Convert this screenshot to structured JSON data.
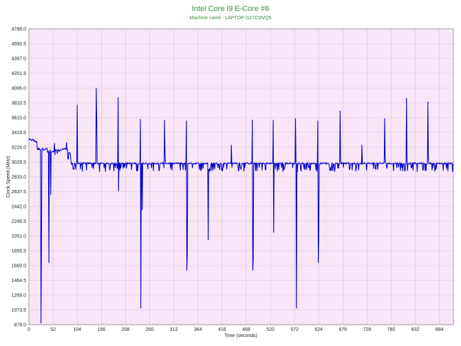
{
  "chart_data": {
    "type": "line",
    "title": "Intel Core i9 E-Core #6",
    "subtitle": "Machine name : LAPTOP-G27CDVQ5",
    "xlabel": "Time (seconds)",
    "ylabel": "Clock Speed (MHz)",
    "xlim": [
      0,
      914
    ],
    "ylim": [
      878.0,
      4788.0
    ],
    "x_ticks": [
      "0",
      "52",
      "104",
      "156",
      "208",
      "260",
      "312",
      "364",
      "416",
      "468",
      "520",
      "572",
      "624",
      "676",
      "728",
      "780",
      "832",
      "884"
    ],
    "y_ticks": [
      "878.0",
      "1073.5",
      "1269.0",
      "1464.5",
      "1660.0",
      "1855.5",
      "2051.0",
      "2246.5",
      "2442.0",
      "2637.5",
      "2833.0",
      "3028.5",
      "3224.0",
      "3419.5",
      "3615.0",
      "3810.5",
      "4006.0",
      "4201.5",
      "4397.0",
      "4592.5",
      "4788.0"
    ],
    "grid": true,
    "legend": "none",
    "series": [
      {
        "base_segments": [
          [
            0,
            3320
          ],
          [
            12,
            3300
          ],
          [
            18,
            3200
          ],
          [
            40,
            3160
          ],
          [
            55,
            3180
          ],
          [
            70,
            3200
          ],
          [
            84,
            3150
          ],
          [
            90,
            3000
          ],
          [
            95,
            2930
          ],
          [
            98,
            3010
          ],
          [
            914,
            3010
          ]
        ],
        "spikes": [
          {
            "x": 26,
            "y": 900
          },
          {
            "x": 27,
            "y": 1900
          },
          {
            "x": 43,
            "y": 1700
          },
          {
            "x": 47,
            "y": 2600
          },
          {
            "x": 104,
            "y": 3780
          },
          {
            "x": 145,
            "y": 4000
          },
          {
            "x": 146,
            "y": 3600
          },
          {
            "x": 192,
            "y": 3880
          },
          {
            "x": 193,
            "y": 2650
          },
          {
            "x": 240,
            "y": 3590
          },
          {
            "x": 241,
            "y": 1100
          },
          {
            "x": 244,
            "y": 2400
          },
          {
            "x": 292,
            "y": 3580
          },
          {
            "x": 293,
            "y": 3150
          },
          {
            "x": 339,
            "y": 3570
          },
          {
            "x": 340,
            "y": 1600
          },
          {
            "x": 341,
            "y": 1800
          },
          {
            "x": 386,
            "y": 2000
          },
          {
            "x": 436,
            "y": 3250
          },
          {
            "x": 481,
            "y": 3580
          },
          {
            "x": 482,
            "y": 1600
          },
          {
            "x": 483,
            "y": 1750
          },
          {
            "x": 526,
            "y": 3580
          },
          {
            "x": 527,
            "y": 2100
          },
          {
            "x": 574,
            "y": 3600
          },
          {
            "x": 576,
            "y": 1100
          },
          {
            "x": 578,
            "y": 2900
          },
          {
            "x": 622,
            "y": 3570
          },
          {
            "x": 623,
            "y": 1700
          },
          {
            "x": 624,
            "y": 2000
          },
          {
            "x": 670,
            "y": 3700
          },
          {
            "x": 671,
            "y": 3100
          },
          {
            "x": 717,
            "y": 3250
          },
          {
            "x": 766,
            "y": 3600
          },
          {
            "x": 767,
            "y": 3100
          },
          {
            "x": 813,
            "y": 3870
          },
          {
            "x": 814,
            "y": 3100
          },
          {
            "x": 859,
            "y": 3820
          },
          {
            "x": 860,
            "y": 3100
          }
        ],
        "color": "#0000cc"
      }
    ]
  },
  "colors": {
    "plot_bg": "#f8e6f8",
    "grid": "#d6bcd6",
    "line": "#0000cc",
    "title": "#3a8a3a",
    "subtitle": "#3a8a3a"
  }
}
